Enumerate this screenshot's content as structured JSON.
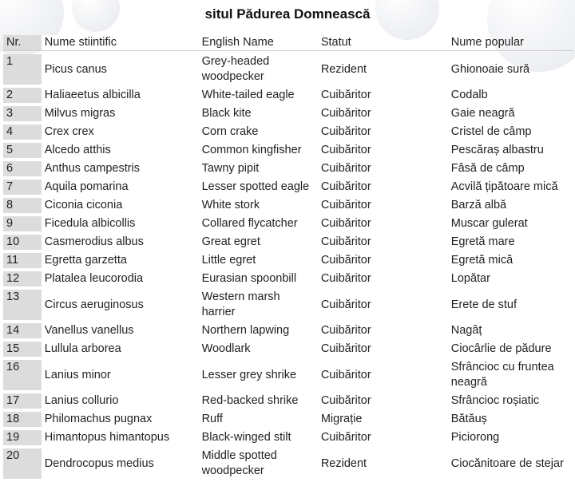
{
  "title": "situl Pădurea Domnească",
  "columns": {
    "nr": "Nr.",
    "scientific": "Nume stiintific",
    "english": "English Name",
    "status": "Statut",
    "popular": "Nume popular"
  },
  "groups": [
    {
      "rows": [
        {
          "nr": "1",
          "scientific": "Picus canus",
          "english": "Grey-headed woodpecker",
          "status": "Rezident",
          "popular": "Ghionoaie sură"
        }
      ]
    },
    {
      "rows": [
        {
          "nr": "2",
          "scientific": "Haliaeetus albicilla",
          "english": "White-tailed eagle",
          "status": "Cuibăritor",
          "popular": "Codalb"
        },
        {
          "nr": "3",
          "scientific": "Milvus migras",
          "english": "Black kite",
          "status": "Cuibăritor",
          "popular": "Gaie neagră"
        },
        {
          "nr": "4",
          "scientific": "Crex crex",
          "english": "Corn crake",
          "status": "Cuibăritor",
          "popular": "Cristel de câmp"
        },
        {
          "nr": "5",
          "scientific": "Alcedo atthis",
          "english": "Common kingfisher",
          "status": "Cuibăritor",
          "popular": "Pescăraș albastru"
        },
        {
          "nr": "6",
          "scientific": "Anthus campestris",
          "english": "Tawny pipit",
          "status": "Cuibăritor",
          "popular": "Fâsă de câmp"
        },
        {
          "nr": "7",
          "scientific": "Aquila pomarina",
          "english": "Lesser spotted eagle",
          "status": "Cuibăritor",
          "popular": "Acvilă țipătoare mică"
        }
      ]
    },
    {
      "rows": [
        {
          "nr": "8",
          "scientific": "Ciconia ciconia",
          "english": "White stork",
          "status": "Cuibăritor",
          "popular": "Barză albă"
        },
        {
          "nr": "9",
          "scientific": "Ficedula albicollis",
          "english": "Collared flycatcher",
          "status": "Cuibăritor",
          "popular": "Muscar gulerat"
        },
        {
          "nr": "10",
          "scientific": "Casmerodius albus",
          "english": "Great egret",
          "status": "Cuibăritor",
          "popular": "Egretă mare"
        },
        {
          "nr": "11",
          "scientific": "Egretta garzetta",
          "english": "Little egret",
          "status": "Cuibăritor",
          "popular": "Egretă mică"
        },
        {
          "nr": "12",
          "scientific": "Platalea leucorodia",
          "english": "Eurasian spoonbill",
          "status": "Cuibăritor",
          "popular": "Lopătar"
        },
        {
          "nr": "13",
          "scientific": "Circus aeruginosus",
          "english": "Western marsh harrier",
          "status": "Cuibăritor",
          "popular": "Erete de stuf"
        }
      ]
    },
    {
      "rows": [
        {
          "nr": "14",
          "scientific": "Vanellus vanellus",
          "english": "Northern lapwing",
          "status": "Cuibăritor",
          "popular": "Nagâț"
        },
        {
          "nr": "15",
          "scientific": "Lullula arborea",
          "english": "Woodlark",
          "status": "Cuibăritor",
          "popular": "Ciocârlie de pădure"
        },
        {
          "nr": "16",
          "scientific": "Lanius minor",
          "english": "Lesser grey shrike",
          "status": "Cuibăritor",
          "popular": "Sfrâncioc cu fruntea neagră"
        }
      ]
    },
    {
      "rows": [
        {
          "nr": "17",
          "scientific": "Lanius collurio",
          "english": "Red-backed shrike",
          "status": "Cuibăritor",
          "popular": "Sfrâncioc roșiatic"
        },
        {
          "nr": "18",
          "scientific": "Philomachus pugnax",
          "english": "Ruff",
          "status": "Migrație",
          "popular": "Bătăuș"
        },
        {
          "nr": "19",
          "scientific": "Himantopus himantopus",
          "english": "Black-winged stilt",
          "status": "Cuibăritor",
          "popular": "Piciorong"
        },
        {
          "nr": "20",
          "scientific": "Dendrocopus medius",
          "english": "Middle spotted woodpecker",
          "status": "Rezident",
          "popular": "Ciocănitoare de stejar"
        }
      ]
    }
  ]
}
